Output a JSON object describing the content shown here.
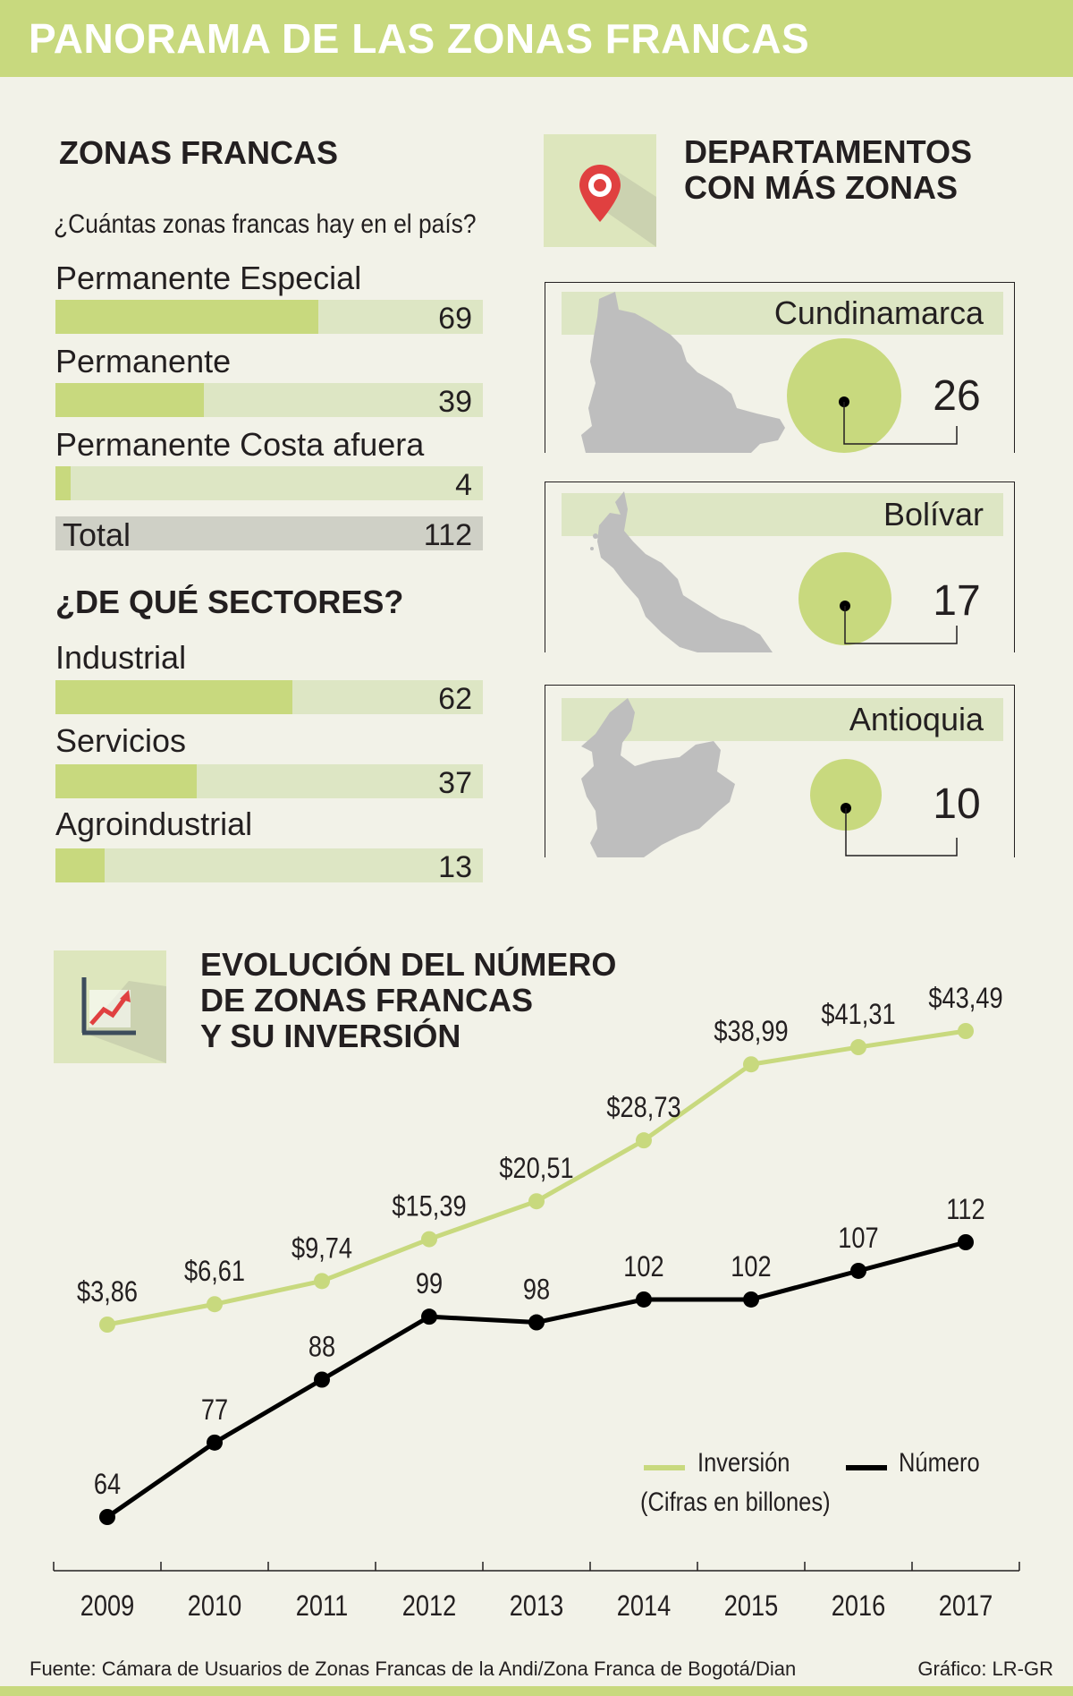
{
  "header": {
    "title": "PANORAMA DE LAS ZONAS FRANCAS"
  },
  "zonas": {
    "title": "ZONAS FRANCAS",
    "question": "¿Cuántas zonas francas  hay en el país?",
    "bars": [
      {
        "label": "Permanente Especial",
        "value": 69
      },
      {
        "label": "Permanente",
        "value": 39
      },
      {
        "label": "Permanente Costa afuera",
        "value": 4
      }
    ],
    "total": {
      "label": "Total",
      "value": 112
    }
  },
  "sectores": {
    "title": "¿DE QUÉ SECTORES?",
    "bars": [
      {
        "label": "Industrial",
        "value": 62
      },
      {
        "label": "Servicios",
        "value": 37
      },
      {
        "label": "Agroindustrial",
        "value": 13
      }
    ]
  },
  "departamentos": {
    "title_line1": "DEPARTAMENTOS",
    "title_line2": "CON MÁS ZONAS",
    "icon": "map-pin-icon",
    "items": [
      {
        "name": "Cundinamarca",
        "value": "26"
      },
      {
        "name": "Bolívar",
        "value": "17"
      },
      {
        "name": "Antioquia",
        "value": "10"
      }
    ]
  },
  "evolucion": {
    "title_line1": "EVOLUCIÓN DEL NÚMERO",
    "title_line2": "DE ZONAS FRANCAS",
    "title_line3": "Y SU INVERSIÓN",
    "icon": "trend-chart-icon",
    "legend": {
      "investment": "Inversión",
      "investment_note": "(Cifras en billones)",
      "number": "Número"
    }
  },
  "chart_data": {
    "type": "line",
    "x": [
      "2009",
      "2010",
      "2011",
      "2012",
      "2013",
      "2014",
      "2015",
      "2016",
      "2017"
    ],
    "series": [
      {
        "name": "Inversión",
        "values": [
          3.86,
          6.61,
          9.74,
          15.39,
          20.51,
          28.73,
          38.99,
          41.31,
          43.49
        ],
        "labels": [
          "$3,86",
          "$6,61",
          "$9,74",
          "$15,39",
          "$20,51",
          "$28,73",
          "$38,99",
          "$41,31",
          "$43,49"
        ],
        "color": "#c8d97e"
      },
      {
        "name": "Número",
        "values": [
          64,
          77,
          88,
          99,
          98,
          102,
          102,
          107,
          112
        ],
        "labels": [
          "64",
          "77",
          "88",
          "99",
          "98",
          "102",
          "102",
          "107",
          "112"
        ],
        "color": "#000000"
      }
    ],
    "grid": false,
    "legend_position": "bottom-right"
  },
  "footer": {
    "source": "Fuente:  Cámara de Usuarios de Zonas Francas de la Andi/Zona Franca de Bogotá/Dian",
    "credit": "Gráfico: LR-GR"
  },
  "colors": {
    "accent": "#c8d97e",
    "track": "#dde6c4",
    "total": "#cfd0c6",
    "map": "#bebebe",
    "pin": "#e04040"
  }
}
